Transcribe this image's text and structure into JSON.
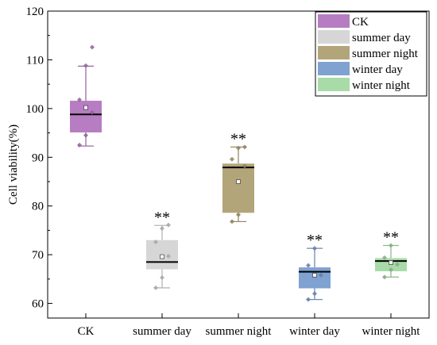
{
  "chart_data": {
    "type": "box",
    "ylabel": "Cell viability(%)",
    "xlabel": "",
    "ylim": [
      57,
      120
    ],
    "yticks": [
      60,
      70,
      80,
      90,
      100,
      110,
      120
    ],
    "legend_position": "top-right",
    "significance_marker": "**",
    "groups": [
      {
        "name": "CK",
        "color": "#b77dc2",
        "whisker_low": 92.3,
        "q1": 95.1,
        "median": 98.8,
        "q3": 101.6,
        "whisker_high": 108.7,
        "mean": 100.2,
        "points": [
          92.5,
          94.5,
          99.2,
          101.8,
          108.8,
          112.6
        ],
        "marker": ""
      },
      {
        "name": "summer day",
        "color": "#d6d6d6",
        "whisker_low": 63.2,
        "q1": 67.0,
        "median": 68.5,
        "q3": 73.0,
        "whisker_high": 76.0,
        "mean": 69.6,
        "points": [
          63.2,
          65.3,
          69.7,
          72.6,
          75.4,
          76.1
        ],
        "marker": "**"
      },
      {
        "name": "summer night",
        "color": "#b3a57a",
        "whisker_low": 76.8,
        "q1": 78.6,
        "median": 87.9,
        "q3": 88.7,
        "whisker_high": 92.1,
        "mean": 85.0,
        "points": [
          76.8,
          78.2,
          88.2,
          89.6,
          91.9,
          92.1
        ],
        "marker": "**"
      },
      {
        "name": "winter day",
        "color": "#7fa2d1",
        "whisker_low": 60.8,
        "q1": 63.1,
        "median": 66.5,
        "q3": 67.4,
        "whisker_high": 71.3,
        "mean": 65.8,
        "points": [
          60.8,
          62.0,
          65.8,
          67.8,
          71.3
        ],
        "marker": "**"
      },
      {
        "name": "winter night",
        "color": "#a8dba8",
        "whisker_low": 65.4,
        "q1": 66.6,
        "median": 68.7,
        "q3": 69.3,
        "whisker_high": 71.9,
        "mean": 68.4,
        "points": [
          65.4,
          66.9,
          68.0,
          69.4,
          71.9
        ],
        "marker": "**"
      }
    ]
  }
}
